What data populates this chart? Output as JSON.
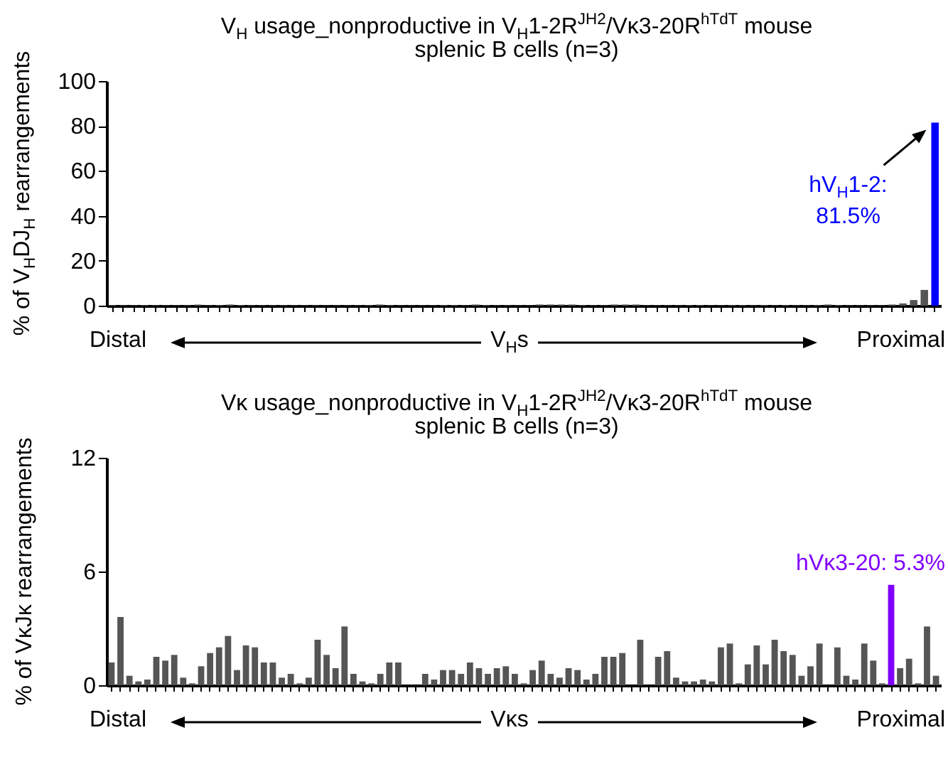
{
  "chart_data": [
    {
      "type": "bar",
      "title": "V$_{H}$ usage_nonproductive in V$_{H}$1-2R$^{JH2}$/Vκ3-20R$^{hTdT}$ mouse",
      "subtitle": "splenic B cells (n=3)",
      "ylabel": "% of V$_{H}$DJ$_{H}$ rearrangements",
      "xlabel": "V$_{H}$s",
      "annotations": [
        "hV$_{H}$1-2: 81.5%",
        "Distal",
        "Proximal"
      ],
      "categories": [
        null,
        null,
        null,
        null,
        null,
        null,
        null,
        null,
        null,
        null,
        null,
        null,
        null,
        null,
        null,
        null,
        null,
        null,
        null,
        null,
        null,
        null,
        null,
        null,
        null,
        null,
        null,
        null,
        null,
        null,
        null,
        null,
        null,
        null,
        null,
        null,
        null,
        null,
        null,
        null,
        null,
        null,
        null,
        null,
        null,
        null,
        null,
        null,
        null,
        null,
        null,
        null,
        null,
        null,
        null,
        null,
        null,
        null,
        null,
        null,
        null,
        null,
        null,
        null,
        null,
        null,
        null,
        null,
        null,
        null,
        null,
        null,
        null,
        null,
        null,
        null,
        null,
        null
      ],
      "values": [
        0.3,
        0.2,
        0.2,
        0.3,
        0.2,
        0.2,
        0.2,
        0.2,
        0.5,
        0.2,
        0.3,
        0.5,
        0.3,
        0.2,
        0.2,
        0.2,
        0.2,
        0.2,
        0.2,
        0.2,
        0.2,
        0.2,
        0.2,
        0.2,
        0.3,
        0.5,
        0.3,
        0.2,
        0.2,
        0.2,
        0.2,
        0.3,
        0.3,
        0.2,
        0.5,
        0.3,
        0.2,
        0.2,
        0.2,
        0.2,
        0.5,
        0.5,
        0.5,
        0.5,
        0.3,
        0.2,
        0.2,
        0.5,
        0.5,
        0.5,
        0.2,
        0.2,
        0.2,
        0.2,
        0.3,
        0.3,
        0.2,
        0.2,
        0.3,
        0.3,
        0.2,
        0.3,
        0.2,
        0.3,
        0.2,
        0.2,
        0.3,
        0.5,
        0.3,
        0.2,
        0.2,
        0.2,
        0.2,
        0.5,
        1,
        2.5,
        7,
        81.5
      ],
      "colors": [
        "#555555",
        "#555555",
        "#555555",
        "#555555",
        "#555555",
        "#555555",
        "#555555",
        "#555555",
        "#555555",
        "#555555",
        "#555555",
        "#555555",
        "#555555",
        "#555555",
        "#555555",
        "#555555",
        "#555555",
        "#555555",
        "#555555",
        "#555555",
        "#555555",
        "#555555",
        "#555555",
        "#555555",
        "#555555",
        "#555555",
        "#555555",
        "#555555",
        "#555555",
        "#555555",
        "#555555",
        "#555555",
        "#555555",
        "#555555",
        "#555555",
        "#555555",
        "#555555",
        "#555555",
        "#555555",
        "#555555",
        "#555555",
        "#555555",
        "#555555",
        "#555555",
        "#555555",
        "#555555",
        "#555555",
        "#555555",
        "#555555",
        "#555555",
        "#555555",
        "#555555",
        "#555555",
        "#555555",
        "#555555",
        "#555555",
        "#555555",
        "#555555",
        "#555555",
        "#555555",
        "#555555",
        "#555555",
        "#555555",
        "#555555",
        "#555555",
        "#555555",
        "#555555",
        "#555555",
        "#555555",
        "#555555",
        "#555555",
        "#555555",
        "#555555",
        "#555555",
        "#555555",
        "#555555",
        "#555555",
        "#0000ff"
      ],
      "ylim": [
        0,
        100
      ],
      "yticks": [
        0,
        20,
        40,
        60,
        80,
        100
      ],
      "grid": false
    },
    {
      "type": "bar",
      "title": "Vκ usage_nonproductive in V$_{H}$1-2R$^{JH2}$/Vκ3-20R$^{hTdT}$ mouse",
      "subtitle": "splenic B cells (n=3)",
      "ylabel": "% of VκJκ rearrangements",
      "xlabel": "Vκs",
      "annotations": [
        "hVκ3-20: 5.3%",
        "Distal",
        "Proximal"
      ],
      "categories": [
        null,
        null,
        null,
        null,
        null,
        null,
        null,
        null,
        null,
        null,
        null,
        null,
        null,
        null,
        null,
        null,
        null,
        null,
        null,
        null,
        null,
        null,
        null,
        null,
        null,
        null,
        null,
        null,
        null,
        null,
        null,
        null,
        null,
        null,
        null,
        null,
        null,
        null,
        null,
        null,
        null,
        null,
        null,
        null,
        null,
        null,
        null,
        null,
        null,
        null,
        null,
        null,
        null,
        null,
        null,
        null,
        null,
        null,
        null,
        null,
        null,
        null,
        null,
        null,
        null,
        null,
        null,
        null,
        null,
        null,
        null,
        null,
        null,
        null,
        null,
        null,
        null,
        null,
        null,
        null,
        null,
        null,
        null,
        null,
        null,
        null,
        null,
        null,
        null,
        null,
        null,
        null,
        null
      ],
      "values": [
        1.2,
        3.6,
        0.5,
        0.2,
        0.3,
        1.5,
        1.3,
        1.6,
        0.4,
        0.1,
        1.0,
        1.7,
        2.0,
        2.6,
        0.8,
        2.1,
        2.0,
        1.2,
        1.2,
        0.4,
        0.6,
        0.1,
        0.4,
        2.4,
        1.6,
        0.9,
        3.1,
        0.6,
        0.2,
        0.1,
        0.6,
        1.2,
        1.2,
        0,
        0,
        0.6,
        0.3,
        0.8,
        0.8,
        0.6,
        1.2,
        0.9,
        0.6,
        0.9,
        1.0,
        0.6,
        0.1,
        0.8,
        1.3,
        0.6,
        0.4,
        0.9,
        0.8,
        0.3,
        0.6,
        1.5,
        1.5,
        1.7,
        0,
        2.4,
        0,
        1.5,
        1.8,
        0.4,
        0.2,
        0.2,
        0.3,
        0.2,
        2.0,
        2.2,
        0.1,
        1.1,
        2.1,
        1.1,
        2.4,
        1.8,
        1.6,
        0.5,
        1.0,
        2.2,
        0,
        2.0,
        0.5,
        0.3,
        2.2,
        1.3,
        0.1,
        5.3,
        0.9,
        1.4,
        0.1,
        3.1,
        0.5
      ],
      "colors": [
        "#555555",
        "#555555",
        "#555555",
        "#555555",
        "#555555",
        "#555555",
        "#555555",
        "#555555",
        "#555555",
        "#555555",
        "#555555",
        "#555555",
        "#555555",
        "#555555",
        "#555555",
        "#555555",
        "#555555",
        "#555555",
        "#555555",
        "#555555",
        "#555555",
        "#555555",
        "#555555",
        "#555555",
        "#555555",
        "#555555",
        "#555555",
        "#555555",
        "#555555",
        "#555555",
        "#555555",
        "#555555",
        "#555555",
        "#555555",
        "#555555",
        "#555555",
        "#555555",
        "#555555",
        "#555555",
        "#555555",
        "#555555",
        "#555555",
        "#555555",
        "#555555",
        "#555555",
        "#555555",
        "#555555",
        "#555555",
        "#555555",
        "#555555",
        "#555555",
        "#555555",
        "#555555",
        "#555555",
        "#555555",
        "#555555",
        "#555555",
        "#555555",
        "#555555",
        "#555555",
        "#555555",
        "#555555",
        "#555555",
        "#555555",
        "#555555",
        "#555555",
        "#555555",
        "#555555",
        "#555555",
        "#555555",
        "#555555",
        "#555555",
        "#555555",
        "#555555",
        "#555555",
        "#555555",
        "#555555",
        "#555555",
        "#555555",
        "#555555",
        "#555555",
        "#555555",
        "#555555",
        "#555555",
        "#555555",
        "#555555",
        "#555555",
        "#8000ff",
        "#555555",
        "#555555",
        "#555555",
        "#555555",
        "#555555"
      ],
      "ylim": [
        0,
        12
      ],
      "yticks": [
        0,
        6,
        12
      ],
      "grid": false
    }
  ]
}
